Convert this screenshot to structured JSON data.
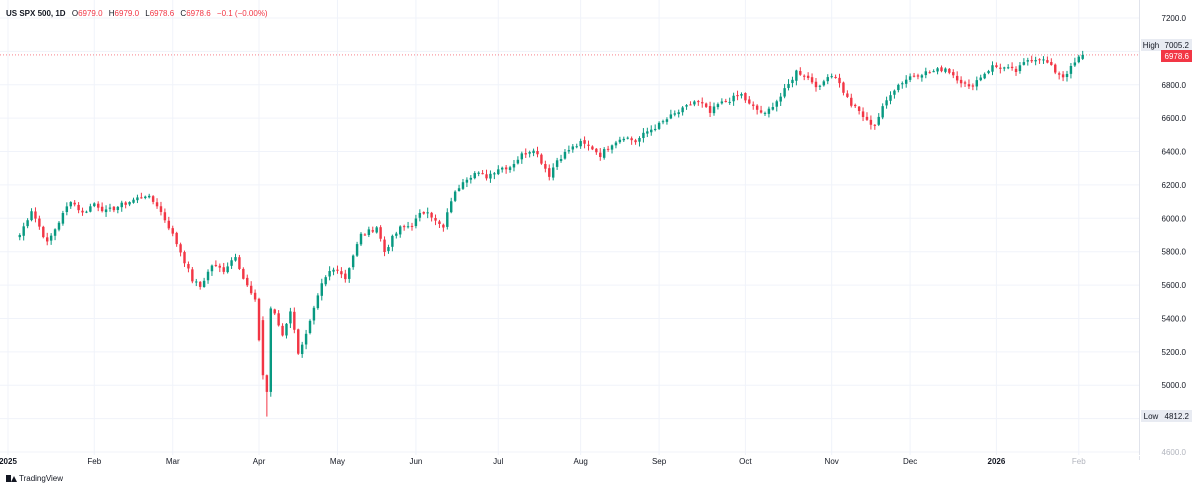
{
  "legend": {
    "symbol": "US SPX 500, 1D",
    "o_label": "O",
    "o_value": "6979.0",
    "h_label": "H",
    "h_value": "6979.0",
    "l_label": "L",
    "l_value": "6978.6",
    "c_label": "C",
    "c_value": "6978.6",
    "change": "−0.1 (−0.00%)"
  },
  "brand": {
    "name": "TradingView",
    "icon": "tradingview-logo-icon"
  },
  "colors": {
    "up": "#089981",
    "down": "#f23645",
    "text": "#131722",
    "grid": "#f0f3fa",
    "marker_bg": "#e8ebf2"
  },
  "chart_data": {
    "type": "candlestick",
    "y_ticks": [
      "7200.0",
      "7000.0",
      "6800.0",
      "6600.0",
      "6400.0",
      "6200.0",
      "6000.0",
      "5800.0",
      "5600.0",
      "5400.0",
      "5200.0",
      "5000.0",
      "4800.0",
      "4600.0"
    ],
    "ylim": [
      4600,
      7200
    ],
    "x_labels": [
      {
        "label": "2025",
        "t": -3
      },
      {
        "label": "Feb",
        "t": 19
      },
      {
        "label": "Mar",
        "t": 39
      },
      {
        "label": "Apr",
        "t": 61
      },
      {
        "label": "May",
        "t": 81
      },
      {
        "label": "Jun",
        "t": 101
      },
      {
        "label": "Jul",
        "t": 122
      },
      {
        "label": "Aug",
        "t": 143
      },
      {
        "label": "Sep",
        "t": 163
      },
      {
        "label": "Oct",
        "t": 185
      },
      {
        "label": "Nov",
        "t": 207
      },
      {
        "label": "Dec",
        "t": 227
      },
      {
        "label": "2026",
        "t": 249
      },
      {
        "label": "Feb",
        "t": 270
      }
    ],
    "xlim": [
      -3,
      280
    ],
    "high_marker": {
      "label": "High",
      "value": "7005.2"
    },
    "low_marker": {
      "label": "Low",
      "value": "4812.2"
    },
    "last_price": "6978.6",
    "waypoints": [
      [
        0,
        5900
      ],
      [
        3,
        6050
      ],
      [
        7,
        5850
      ],
      [
        10,
        5980
      ],
      [
        13,
        6110
      ],
      [
        16,
        6030
      ],
      [
        19,
        6090
      ],
      [
        22,
        6040
      ],
      [
        25,
        6070
      ],
      [
        28,
        6100
      ],
      [
        32,
        6140
      ],
      [
        35,
        6080
      ],
      [
        38,
        5950
      ],
      [
        41,
        5800
      ],
      [
        44,
        5630
      ],
      [
        46,
        5590
      ],
      [
        49,
        5720
      ],
      [
        52,
        5690
      ],
      [
        55,
        5780
      ],
      [
        57,
        5640
      ],
      [
        60,
        5500
      ],
      [
        62,
        5050
      ],
      [
        63,
        4950
      ],
      [
        64,
        5250
      ],
      [
        65,
        5420
      ],
      [
        67,
        5300
      ],
      [
        69,
        5450
      ],
      [
        71,
        5200
      ],
      [
        73,
        5300
      ],
      [
        75,
        5450
      ],
      [
        77,
        5600
      ],
      [
        79,
        5680
      ],
      [
        81,
        5700
      ],
      [
        83,
        5640
      ],
      [
        85,
        5780
      ],
      [
        87,
        5900
      ],
      [
        89,
        5920
      ],
      [
        91,
        5950
      ],
      [
        93,
        5800
      ],
      [
        95,
        5880
      ],
      [
        97,
        5940
      ],
      [
        100,
        5960
      ],
      [
        102,
        6020
      ],
      [
        104,
        6050
      ],
      [
        106,
        5980
      ],
      [
        108,
        5940
      ],
      [
        110,
        6110
      ],
      [
        113,
        6230
      ],
      [
        116,
        6270
      ],
      [
        119,
        6250
      ],
      [
        122,
        6300
      ],
      [
        125,
        6310
      ],
      [
        128,
        6380
      ],
      [
        131,
        6420
      ],
      [
        133,
        6340
      ],
      [
        135,
        6260
      ],
      [
        137,
        6350
      ],
      [
        140,
        6410
      ],
      [
        143,
        6450
      ],
      [
        146,
        6420
      ],
      [
        148,
        6380
      ],
      [
        151,
        6450
      ],
      [
        154,
        6490
      ],
      [
        157,
        6460
      ],
      [
        160,
        6520
      ],
      [
        163,
        6560
      ],
      [
        166,
        6610
      ],
      [
        169,
        6650
      ],
      [
        172,
        6700
      ],
      [
        174,
        6680
      ],
      [
        176,
        6630
      ],
      [
        178,
        6680
      ],
      [
        181,
        6710
      ],
      [
        184,
        6740
      ],
      [
        186,
        6680
      ],
      [
        188,
        6650
      ],
      [
        190,
        6620
      ],
      [
        192,
        6680
      ],
      [
        194,
        6730
      ],
      [
        196,
        6800
      ],
      [
        198,
        6880
      ],
      [
        200,
        6860
      ],
      [
        202,
        6820
      ],
      [
        204,
        6780
      ],
      [
        206,
        6860
      ],
      [
        208,
        6850
      ],
      [
        210,
        6760
      ],
      [
        212,
        6680
      ],
      [
        214,
        6640
      ],
      [
        216,
        6580
      ],
      [
        218,
        6560
      ],
      [
        220,
        6660
      ],
      [
        222,
        6750
      ],
      [
        224,
        6800
      ],
      [
        227,
        6850
      ],
      [
        230,
        6870
      ],
      [
        233,
        6880
      ],
      [
        236,
        6900
      ],
      [
        238,
        6860
      ],
      [
        240,
        6820
      ],
      [
        242,
        6780
      ],
      [
        245,
        6850
      ],
      [
        248,
        6910
      ],
      [
        251,
        6900
      ],
      [
        254,
        6880
      ],
      [
        257,
        6950
      ],
      [
        260,
        6960
      ],
      [
        262,
        6930
      ],
      [
        264,
        6880
      ],
      [
        266,
        6850
      ],
      [
        268,
        6900
      ],
      [
        270,
        6960
      ],
      [
        271,
        6978.6
      ]
    ],
    "x_units": "trading days since start"
  }
}
